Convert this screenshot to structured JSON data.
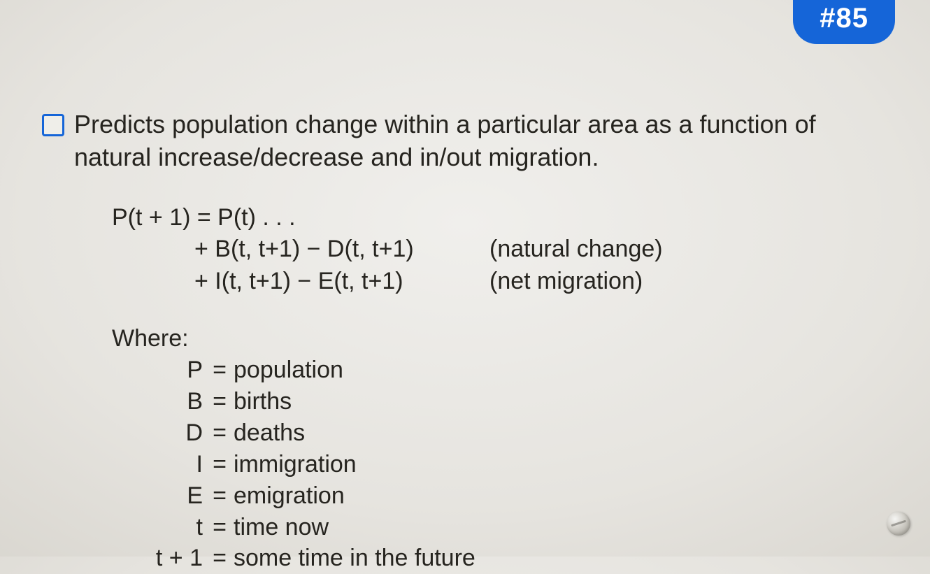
{
  "badge": {
    "label": "#85",
    "bg": "#1565d8",
    "fg": "#ffffff"
  },
  "lead": "Predicts population change within a particular area as a function of natural increase/decrease and in/out migration.",
  "equation": {
    "line1": "P(t + 1) = P(t) . . .",
    "line2": "+ B(t, t+1) − D(t, t+1)",
    "note2": "(natural change)",
    "line3": "+ I(t, t+1) − E(t, t+1)",
    "note3": "(net migration)"
  },
  "where_label": "Where:",
  "defs": [
    {
      "sym": "P",
      "txt": "population"
    },
    {
      "sym": "B",
      "txt": "births"
    },
    {
      "sym": "D",
      "txt": "deaths"
    },
    {
      "sym": "I",
      "txt": "immigration"
    },
    {
      "sym": "E",
      "txt": "emigration"
    },
    {
      "sym": "t",
      "txt": "time now"
    },
    {
      "sym": "t + 1",
      "txt": "some time in the future"
    }
  ]
}
